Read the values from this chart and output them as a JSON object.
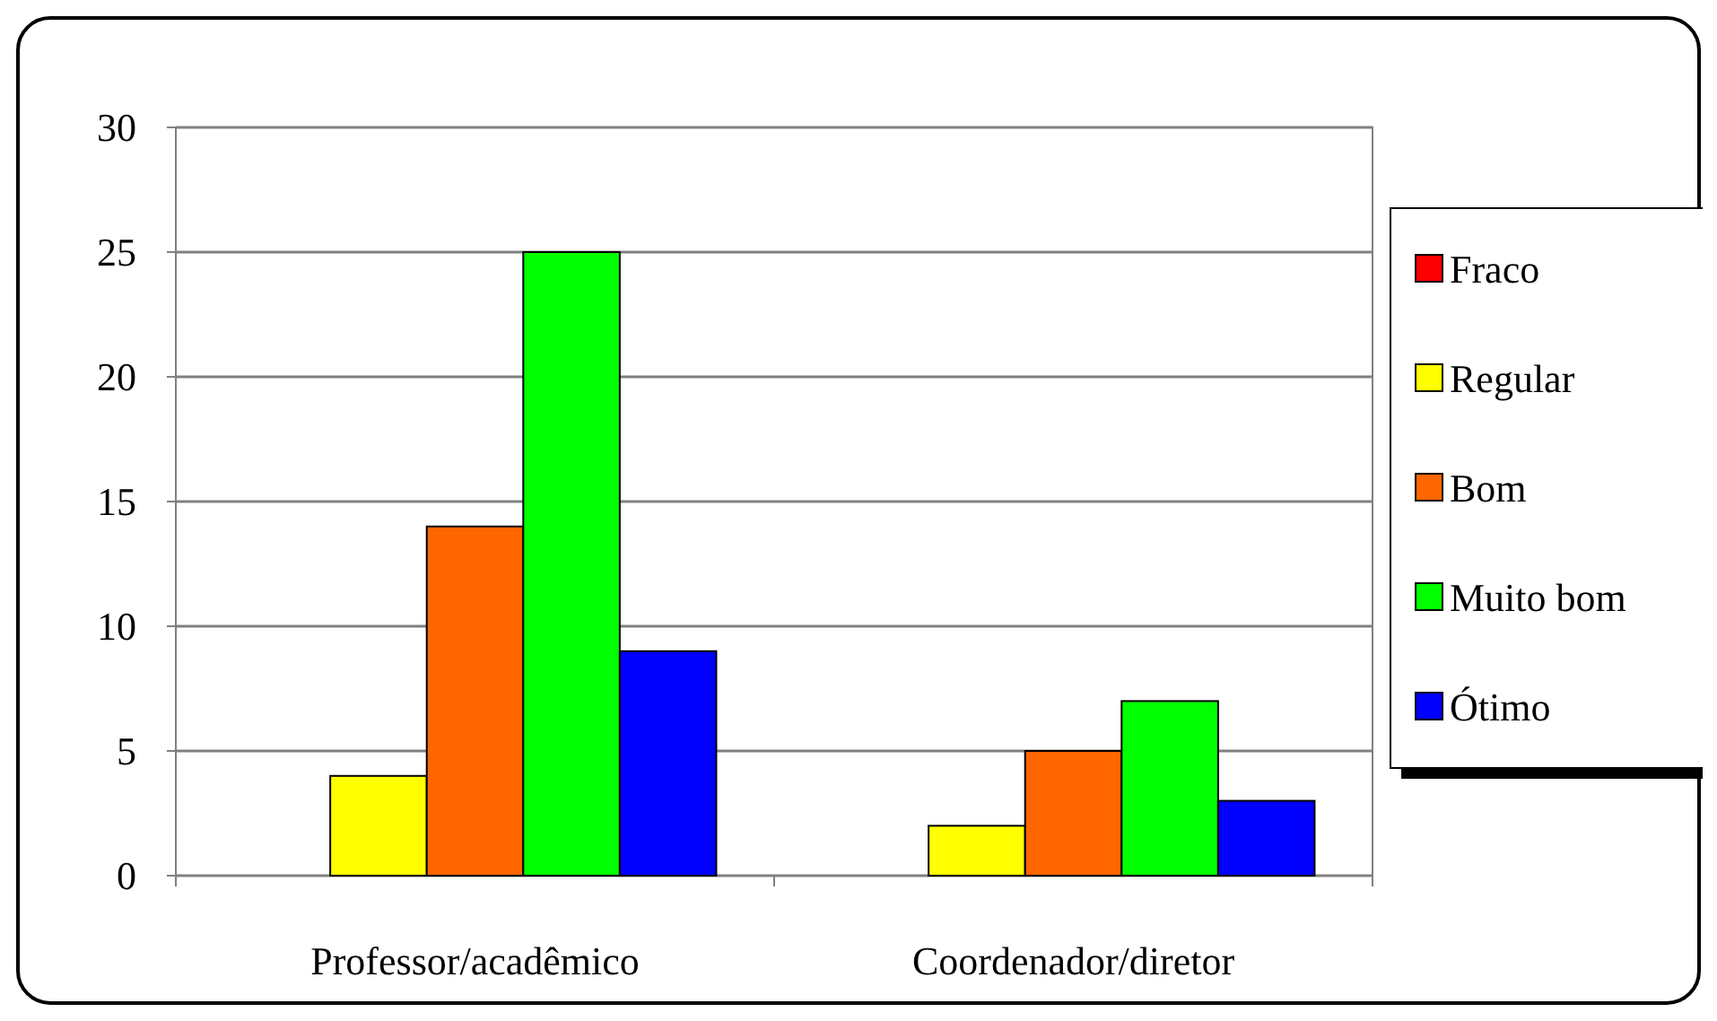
{
  "chart_data": {
    "type": "bar",
    "categories": [
      "Professor/acadêmico",
      "Coordenador/diretor"
    ],
    "series": [
      {
        "name": "Fraco",
        "color": "#ff0000",
        "values": [
          0,
          0
        ]
      },
      {
        "name": "Regular",
        "color": "#ffff00",
        "values": [
          4,
          2
        ]
      },
      {
        "name": "Bom",
        "color": "#ff6600",
        "values": [
          14,
          5
        ]
      },
      {
        "name": "Muito bom",
        "color": "#00ff00",
        "values": [
          25,
          7
        ]
      },
      {
        "name": "Ótimo",
        "color": "#0000ff",
        "values": [
          9,
          3
        ]
      }
    ],
    "ylim": [
      0,
      30
    ],
    "yticks": [
      0,
      5,
      10,
      15,
      20,
      25,
      30
    ],
    "grid": "y",
    "legend": "right"
  }
}
